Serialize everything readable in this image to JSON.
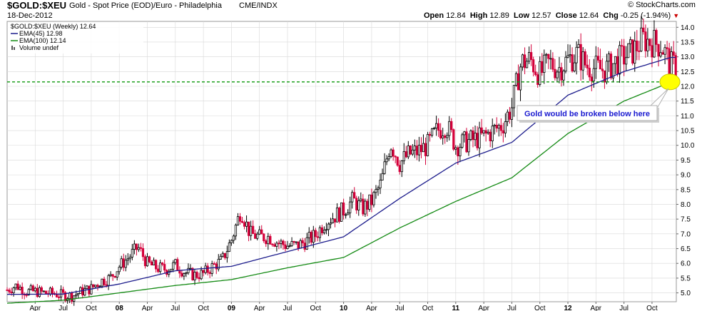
{
  "header": {
    "symbol": "$GOLD:$XEU",
    "description": "Gold - Spot Price (EOD)/Euro - Philadelphia",
    "exchange": "CME/INDX",
    "date": "18-Dec-2012",
    "brand": "© StockCharts.com",
    "quote": {
      "open_label": "Open",
      "open": "12.84",
      "high_label": "High",
      "high": "12.89",
      "low_label": "Low",
      "low": "12.57",
      "close_label": "Close",
      "close": "12.64",
      "chg_label": "Chg",
      "chg": "-0.25 (-1.94%)"
    }
  },
  "legend": [
    {
      "text": "$GOLD:$XEU (Weekly) 12.64",
      "color": "#000000",
      "marker": "none"
    },
    {
      "text": "EMA(45) 12.98",
      "color": "#1c1c8c",
      "marker": "line"
    },
    {
      "text": "EMA(100) 12.14",
      "color": "#138a13",
      "marker": "line"
    },
    {
      "text": "Volume undef",
      "color": "#555555",
      "marker": "bar"
    }
  ],
  "annotation": {
    "text": "Gold would be broken below here",
    "support_level": 12.15,
    "highlight_color": "#ffff00"
  },
  "colors": {
    "up": "#000000",
    "down": "#d4003a",
    "ema45": "#1c1c8c",
    "ema100": "#138a13",
    "support": "#0d9a0d",
    "grid": "#d8d8d8"
  },
  "chart_data": {
    "type": "candlestick",
    "interval": "weekly",
    "ylim": [
      4.7,
      14.2
    ],
    "y_ticks": [
      "5.0",
      "5.5",
      "6.0",
      "6.5",
      "7.0",
      "7.5",
      "8.0",
      "8.5",
      "9.0",
      "9.5",
      "10.0",
      "10.5",
      "11.0",
      "11.5",
      "12.0",
      "12.5",
      "13.0",
      "13.5",
      "14.0"
    ],
    "x_ticks": [
      "Apr",
      "Jul",
      "Oct",
      "08",
      "Apr",
      "Jul",
      "Oct",
      "09",
      "Apr",
      "Jul",
      "Oct",
      "10",
      "Apr",
      "Jul",
      "Oct",
      "11",
      "Apr",
      "Jul",
      "Oct",
      "12",
      "Apr",
      "Jul",
      "Oct"
    ],
    "x_tick_dates": [
      "2007-04",
      "2007-07",
      "2007-10",
      "2008-01",
      "2008-04",
      "2008-07",
      "2008-10",
      "2009-01",
      "2009-04",
      "2009-07",
      "2009-10",
      "2010-01",
      "2010-04",
      "2010-07",
      "2010-10",
      "2011-01",
      "2011-04",
      "2011-07",
      "2011-10",
      "2012-01",
      "2012-04",
      "2012-07",
      "2012-10"
    ],
    "price_path": [
      {
        "date": "2007-01",
        "value": 5.1
      },
      {
        "date": "2007-02",
        "value": 5.25
      },
      {
        "date": "2007-03",
        "value": 5.05
      },
      {
        "date": "2007-04",
        "value": 5.05
      },
      {
        "date": "2007-05",
        "value": 5.0
      },
      {
        "date": "2007-06",
        "value": 4.98
      },
      {
        "date": "2007-07",
        "value": 4.92
      },
      {
        "date": "2007-08",
        "value": 4.9
      },
      {
        "date": "2007-09",
        "value": 5.05
      },
      {
        "date": "2007-10",
        "value": 5.15
      },
      {
        "date": "2007-11",
        "value": 5.4
      },
      {
        "date": "2007-12",
        "value": 5.5
      },
      {
        "date": "2008-01",
        "value": 5.9
      },
      {
        "date": "2008-02",
        "value": 6.2
      },
      {
        "date": "2008-03",
        "value": 6.55
      },
      {
        "date": "2008-04",
        "value": 6.0
      },
      {
        "date": "2008-05",
        "value": 5.85
      },
      {
        "date": "2008-06",
        "value": 5.8
      },
      {
        "date": "2008-07",
        "value": 5.95
      },
      {
        "date": "2008-08",
        "value": 5.7
      },
      {
        "date": "2008-09",
        "value": 5.6
      },
      {
        "date": "2008-10",
        "value": 5.65
      },
      {
        "date": "2008-11",
        "value": 5.9
      },
      {
        "date": "2008-12",
        "value": 6.1
      },
      {
        "date": "2009-01",
        "value": 6.8
      },
      {
        "date": "2009-02",
        "value": 7.8
      },
      {
        "date": "2009-03",
        "value": 7.0
      },
      {
        "date": "2009-04",
        "value": 6.9
      },
      {
        "date": "2009-05",
        "value": 6.9
      },
      {
        "date": "2009-06",
        "value": 6.7
      },
      {
        "date": "2009-07",
        "value": 6.6
      },
      {
        "date": "2009-08",
        "value": 6.6
      },
      {
        "date": "2009-09",
        "value": 6.75
      },
      {
        "date": "2009-10",
        "value": 6.95
      },
      {
        "date": "2009-11",
        "value": 7.4
      },
      {
        "date": "2009-12",
        "value": 7.6
      },
      {
        "date": "2010-01",
        "value": 7.8
      },
      {
        "date": "2010-02",
        "value": 8.15
      },
      {
        "date": "2010-03",
        "value": 7.85
      },
      {
        "date": "2010-04",
        "value": 8.1
      },
      {
        "date": "2010-05",
        "value": 8.7
      },
      {
        "date": "2010-06",
        "value": 10.1
      },
      {
        "date": "2010-07",
        "value": 9.4
      },
      {
        "date": "2010-08",
        "value": 9.7
      },
      {
        "date": "2010-09",
        "value": 9.8
      },
      {
        "date": "2010-10",
        "value": 10.0
      },
      {
        "date": "2010-11",
        "value": 10.5
      },
      {
        "date": "2010-12",
        "value": 10.7
      },
      {
        "date": "2011-01",
        "value": 10.0
      },
      {
        "date": "2011-02",
        "value": 10.1
      },
      {
        "date": "2011-03",
        "value": 10.2
      },
      {
        "date": "2011-04",
        "value": 10.3
      },
      {
        "date": "2011-05",
        "value": 10.5
      },
      {
        "date": "2011-06",
        "value": 10.7
      },
      {
        "date": "2011-07",
        "value": 11.3
      },
      {
        "date": "2011-08",
        "value": 12.8
      },
      {
        "date": "2011-09",
        "value": 12.9
      },
      {
        "date": "2011-10",
        "value": 12.4
      },
      {
        "date": "2011-11",
        "value": 12.8
      },
      {
        "date": "2011-12",
        "value": 12.6
      },
      {
        "date": "2012-01",
        "value": 12.9
      },
      {
        "date": "2012-02",
        "value": 13.1
      },
      {
        "date": "2012-03",
        "value": 12.7
      },
      {
        "date": "2012-04",
        "value": 12.6
      },
      {
        "date": "2012-05",
        "value": 12.55
      },
      {
        "date": "2012-06",
        "value": 12.8
      },
      {
        "date": "2012-07",
        "value": 13.0
      },
      {
        "date": "2012-08",
        "value": 13.2
      },
      {
        "date": "2012-09",
        "value": 13.6
      },
      {
        "date": "2012-10",
        "value": 13.5
      },
      {
        "date": "2012-11",
        "value": 13.4
      },
      {
        "date": "2012-12",
        "value": 12.7
      }
    ],
    "ema45_path": [
      {
        "date": "2007-01",
        "value": 4.95
      },
      {
        "date": "2007-07",
        "value": 4.96
      },
      {
        "date": "2008-01",
        "value": 5.3
      },
      {
        "date": "2008-07",
        "value": 5.75
      },
      {
        "date": "2009-01",
        "value": 5.9
      },
      {
        "date": "2009-07",
        "value": 6.4
      },
      {
        "date": "2010-01",
        "value": 6.9
      },
      {
        "date": "2010-07",
        "value": 8.2
      },
      {
        "date": "2011-01",
        "value": 9.4
      },
      {
        "date": "2011-07",
        "value": 10.1
      },
      {
        "date": "2012-01",
        "value": 11.7
      },
      {
        "date": "2012-07",
        "value": 12.5
      },
      {
        "date": "2012-12",
        "value": 12.98
      }
    ],
    "ema100_path": [
      {
        "date": "2007-01",
        "value": 4.65
      },
      {
        "date": "2007-07",
        "value": 4.75
      },
      {
        "date": "2008-01",
        "value": 5.0
      },
      {
        "date": "2008-07",
        "value": 5.25
      },
      {
        "date": "2009-01",
        "value": 5.45
      },
      {
        "date": "2009-07",
        "value": 5.85
      },
      {
        "date": "2010-01",
        "value": 6.2
      },
      {
        "date": "2010-07",
        "value": 7.2
      },
      {
        "date": "2011-01",
        "value": 8.1
      },
      {
        "date": "2011-07",
        "value": 8.9
      },
      {
        "date": "2012-01",
        "value": 10.4
      },
      {
        "date": "2012-07",
        "value": 11.5
      },
      {
        "date": "2012-12",
        "value": 12.14
      }
    ]
  }
}
